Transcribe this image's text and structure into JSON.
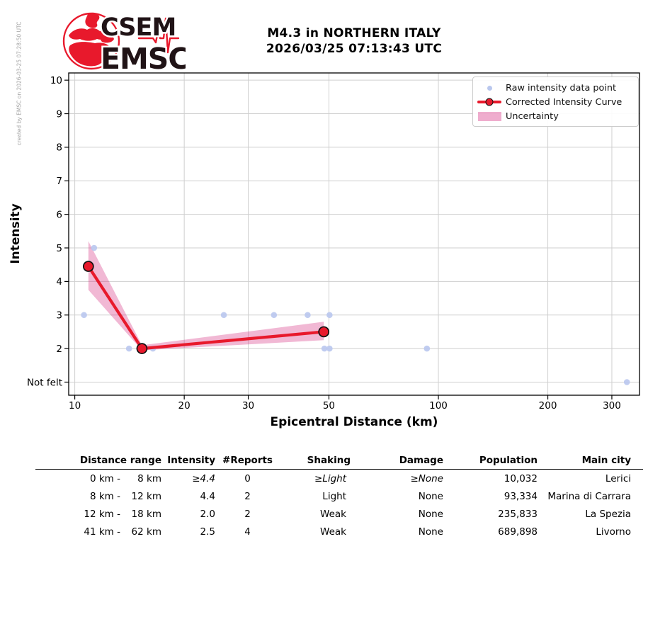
{
  "meta": {
    "created_by": "created by EMSC on 2026-03-25 07:28:50 UTC"
  },
  "logo": {
    "line1": "CSEM",
    "line2": "EMSC"
  },
  "header": {
    "title_line1": "M4.3 in NORTHERN ITALY",
    "title_line2": "2026/03/25 07:13:43 UTC"
  },
  "colors": {
    "accent_red": "#e8192c",
    "raw_point": "#b9c7ee",
    "band_base": "#d63384",
    "grid": "#cfcfcf",
    "logo_text": "#201316",
    "created_by_text": "#a3a3a3"
  },
  "chart_data": {
    "type": "scatter",
    "title": "M4.3 in NORTHERN ITALY 2026/03/25 07:13:43 UTC",
    "xlabel": "Epicentral Distance (km)",
    "ylabel": "Intensity",
    "x_scale": "log",
    "x_ticks": [
      10,
      20,
      30,
      50,
      100,
      200,
      300
    ],
    "x_range": [
      9.6,
      357
    ],
    "y_ticks": [
      {
        "value": 1,
        "label": "Not felt"
      },
      {
        "value": 2,
        "label": "2"
      },
      {
        "value": 3,
        "label": "3"
      },
      {
        "value": 4,
        "label": "4"
      },
      {
        "value": 5,
        "label": "5"
      },
      {
        "value": 6,
        "label": "6"
      },
      {
        "value": 7,
        "label": "7"
      },
      {
        "value": 8,
        "label": "8"
      },
      {
        "value": 9,
        "label": "9"
      },
      {
        "value": 10,
        "label": "10"
      }
    ],
    "y_range": [
      0.61,
      10.21
    ],
    "grid": true,
    "legend_position": "upper right",
    "legend": [
      "Raw intensity data point",
      "Corrected Intensity Curve",
      "Uncertainty"
    ],
    "series": [
      {
        "name": "Raw intensity data point",
        "type": "scatter",
        "color": "#b9c7ee",
        "points": [
          [
            10.6,
            3
          ],
          [
            11.3,
            5
          ],
          [
            14.1,
            2
          ],
          [
            16.4,
            2
          ],
          [
            25.7,
            3
          ],
          [
            35.3,
            3
          ],
          [
            43.7,
            3
          ],
          [
            48.6,
            2
          ],
          [
            50.2,
            3
          ],
          [
            50.2,
            2
          ],
          [
            93,
            2
          ],
          [
            330,
            1
          ]
        ]
      },
      {
        "name": "Corrected Intensity Curve",
        "type": "line",
        "color": "#e8192c",
        "points": [
          [
            10.9,
            4.45
          ],
          [
            15.3,
            2.0
          ],
          [
            48.4,
            2.5
          ]
        ]
      },
      {
        "name": "Uncertainty",
        "type": "band",
        "color": "#d63384",
        "opacity": 0.35,
        "upper": [
          [
            10.9,
            5.2
          ],
          [
            15.3,
            2.1
          ],
          [
            48.4,
            2.8
          ]
        ],
        "lower": [
          [
            10.9,
            3.75
          ],
          [
            15.3,
            1.95
          ],
          [
            48.4,
            2.25
          ]
        ]
      }
    ]
  },
  "table": {
    "headers": [
      "Distance range",
      "Intensity",
      "#Reports",
      "Shaking",
      "Damage",
      "Population",
      "Main city"
    ],
    "rows": [
      {
        "range_from": "0 km -",
        "range_to": "8 km",
        "intensity": "≥4.4",
        "reports": "0",
        "shaking": "≥Light",
        "damage": "≥None",
        "population": "10,032",
        "city": "Lerici",
        "estimated": true
      },
      {
        "range_from": "8 km -",
        "range_to": "12 km",
        "intensity": "4.4",
        "reports": "2",
        "shaking": "Light",
        "damage": "None",
        "population": "93,334",
        "city": "Marina di Carrara",
        "estimated": false
      },
      {
        "range_from": "12 km -",
        "range_to": "18 km",
        "intensity": "2.0",
        "reports": "2",
        "shaking": "Weak",
        "damage": "None",
        "population": "235,833",
        "city": "La Spezia",
        "estimated": false
      },
      {
        "range_from": "41 km -",
        "range_to": "62 km",
        "intensity": "2.5",
        "reports": "4",
        "shaking": "Weak",
        "damage": "None",
        "population": "689,898",
        "city": "Livorno",
        "estimated": false
      }
    ]
  }
}
